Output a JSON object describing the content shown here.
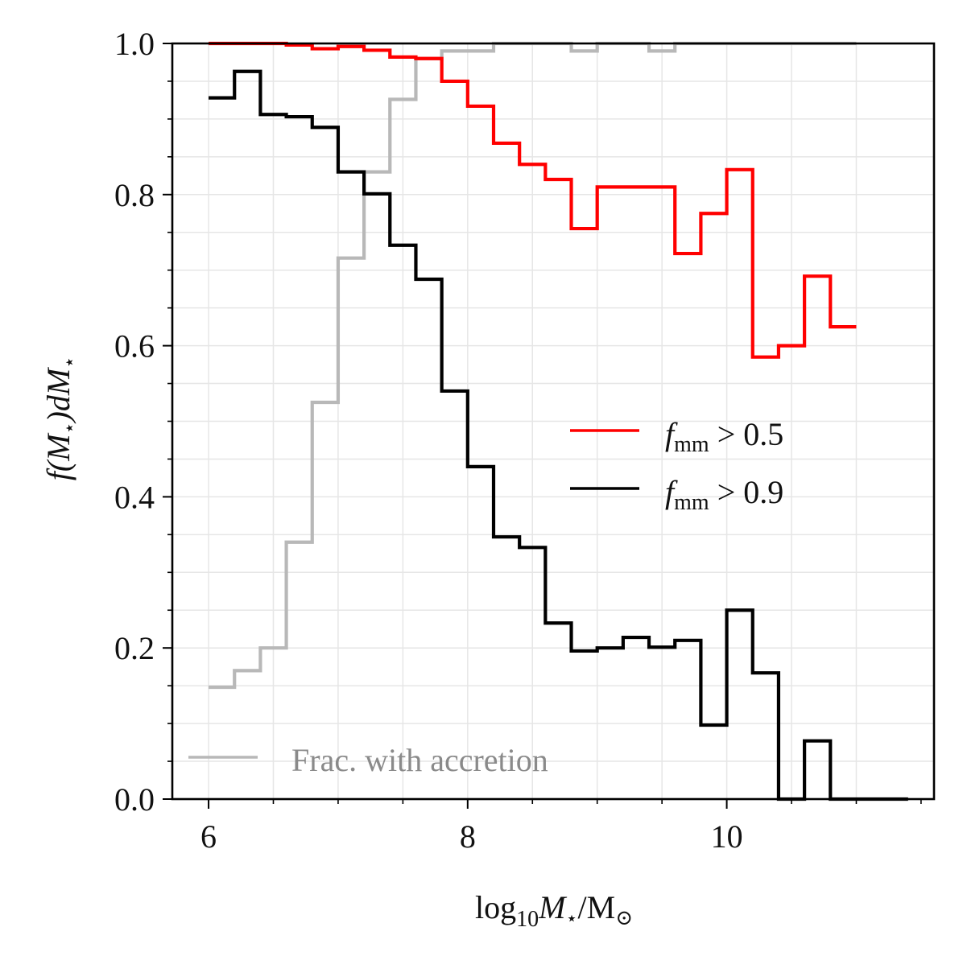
{
  "chart_data": {
    "type": "line",
    "subtype": "step",
    "title": "",
    "xlabel": {
      "log": "log",
      "sub": "10",
      "var": "M",
      "star": "⋆",
      "slash": "/",
      "unit": "M",
      "sun": "⊙"
    },
    "ylabel": {
      "text1": "f",
      "text2": "(M",
      "star": "⋆",
      "text3": ")dM",
      "star2": "⋆"
    },
    "xlim": [
      5.72,
      11.6
    ],
    "ylim": [
      0.0,
      1.0
    ],
    "xticks": [
      6,
      8,
      10
    ],
    "xtick_labels": [
      "6",
      "8",
      "10"
    ],
    "yticks": [
      0.0,
      0.2,
      0.4,
      0.6,
      0.8,
      1.0
    ],
    "ytick_labels": [
      "0.0",
      "0.2",
      "0.4",
      "0.6",
      "0.8",
      "1.0"
    ],
    "bin_edges": [
      6.0,
      6.2,
      6.4,
      6.6,
      6.8,
      7.0,
      7.2,
      7.4,
      7.6,
      7.8,
      8.0,
      8.2,
      8.4,
      8.6,
      8.8,
      9.0,
      9.2,
      9.4,
      9.6,
      9.8,
      10.0,
      10.2,
      10.4,
      10.6,
      10.8,
      11.0
    ],
    "black_edges": [
      6.0,
      6.2,
      6.4,
      6.6,
      6.8,
      7.0,
      7.2,
      7.4,
      7.6,
      7.8,
      8.0,
      8.2,
      8.4,
      8.6,
      8.8,
      9.0,
      9.2,
      9.4,
      9.6,
      9.8,
      10.0,
      10.2,
      10.4,
      10.6,
      10.8,
      11.0,
      11.2,
      11.4
    ],
    "grid": true,
    "series": [
      {
        "name": "f_mm > 0.5",
        "legend_main": "f",
        "legend_sub": "mm",
        "legend_rest": " > 0.5",
        "color": "#ff0000",
        "values": [
          1.0,
          1.0,
          1.0,
          0.998,
          0.993,
          0.996,
          0.991,
          0.982,
          0.98,
          0.95,
          0.917,
          0.868,
          0.84,
          0.82,
          0.755,
          0.81,
          0.81,
          0.81,
          0.722,
          0.775,
          0.833,
          0.585,
          0.6,
          0.692,
          0.625
        ]
      },
      {
        "name": "f_mm > 0.9",
        "legend_main": "f",
        "legend_sub": "mm",
        "legend_rest": " > 0.9",
        "color": "#000000",
        "values": [
          0.928,
          0.963,
          0.906,
          0.903,
          0.889,
          0.83,
          0.801,
          0.733,
          0.688,
          0.54,
          0.44,
          0.347,
          0.333,
          0.233,
          0.196,
          0.2,
          0.214,
          0.201,
          0.21,
          0.098,
          0.25,
          0.167,
          0.0,
          0.077,
          0.0,
          0.0,
          0.0
        ]
      },
      {
        "name": "Frac. with accretion",
        "color": "#b8b8b8",
        "values": [
          0.148,
          0.17,
          0.2,
          0.34,
          0.525,
          0.716,
          0.83,
          0.926,
          0.98,
          0.99,
          0.99,
          1.0,
          1.0,
          1.0,
          0.99,
          1.0,
          1.0,
          0.99,
          1.0,
          1.0,
          1.0,
          1.0,
          1.0,
          1.0,
          1.0
        ]
      }
    ],
    "legend_position": "center-right",
    "secondary_legend_position": "lower-left",
    "secondary_legend_text": "Frac. with accretion"
  }
}
